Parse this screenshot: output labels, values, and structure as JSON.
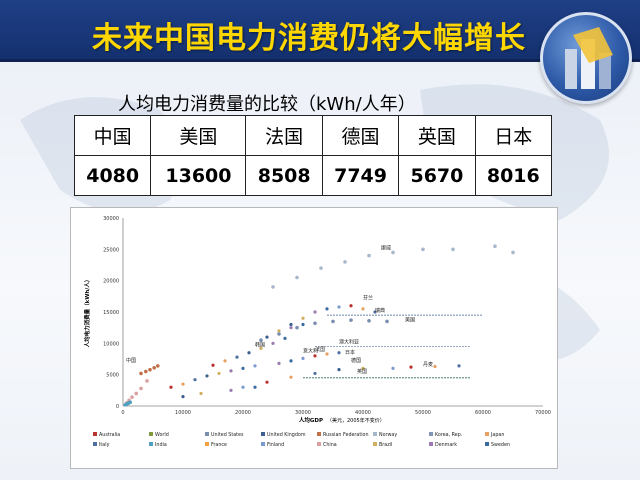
{
  "title": "未来中国电力消费仍将大幅增长",
  "subtitle": "人均电力消费量的比较（kWh/人年）",
  "table": {
    "headers": [
      "中国",
      "美国",
      "法国",
      "德国",
      "英国",
      "日本"
    ],
    "values": [
      "4080",
      "13600",
      "8508",
      "7749",
      "5670",
      "8016"
    ]
  },
  "chart_data": {
    "type": "scatter",
    "xlabel": "人均GDP",
    "xlabel_unit": "（美元，2005年不变价）",
    "ylabel": "人均电力消费量（kWh/人）",
    "xlim": [
      0,
      70000
    ],
    "ylim": [
      0,
      30000
    ],
    "x_ticks": [
      "0",
      "10000",
      "20000",
      "30000",
      "40000",
      "50000",
      "60000",
      "70000"
    ],
    "y_ticks": [
      "0",
      "5000",
      "10000",
      "15000",
      "20000",
      "25000",
      "30000"
    ],
    "annotations": [
      {
        "text": "中国",
        "x": 500,
        "y": 7000
      },
      {
        "text": "挪威",
        "x": 43000,
        "y": 25000
      },
      {
        "text": "芬兰",
        "x": 40000,
        "y": 17000
      },
      {
        "text": "瑞典",
        "x": 42000,
        "y": 15000
      },
      {
        "text": "美国",
        "x": 47000,
        "y": 13500
      },
      {
        "text": "韩国",
        "x": 22000,
        "y": 9500
      },
      {
        "text": "澳大利亚",
        "x": 36000,
        "y": 10000
      },
      {
        "text": "意大利",
        "x": 30000,
        "y": 8500
      },
      {
        "text": "法国",
        "x": 32000,
        "y": 8800
      },
      {
        "text": "日本",
        "x": 37000,
        "y": 8300
      },
      {
        "text": "德国",
        "x": 38000,
        "y": 7000
      },
      {
        "text": "英国",
        "x": 39000,
        "y": 5300
      },
      {
        "text": "丹麦",
        "x": 50000,
        "y": 6400
      }
    ],
    "legend": [
      "Australia",
      "World",
      "United States",
      "United Kingdom",
      "Russian Federation",
      "Norway",
      "Korea, Rep.",
      "Japan",
      "Italy",
      "India",
      "France",
      "Finland",
      "China",
      "Brazil",
      "Denmark",
      "Sweden"
    ],
    "legend_colors": [
      "#b8322e",
      "#7f9a3a",
      "#7a8fb0",
      "#3b5f8f",
      "#c0714a",
      "#a8b8cc",
      "#8095b8",
      "#e8a060",
      "#4f6fa0",
      "#4fa0c0",
      "#f0a040",
      "#7a9ad0",
      "#d8a0a0",
      "#d0b060",
      "#9a7ab0",
      "#3a6aa0"
    ],
    "legend_position": "bottom",
    "series": [
      {
        "name": "United States",
        "x": [
          23000,
          26000,
          29000,
          32000,
          35000,
          38000,
          41000,
          44000
        ],
        "y": [
          10500,
          11500,
          12500,
          13200,
          13500,
          13700,
          13600,
          13500
        ]
      },
      {
        "name": "Norway",
        "x": [
          25000,
          29000,
          33000,
          37000,
          41000,
          45000,
          50000,
          55000,
          62000,
          65000
        ],
        "y": [
          19000,
          20500,
          22000,
          23000,
          24000,
          24500,
          25000,
          25000,
          25500,
          24500
        ]
      },
      {
        "name": "China",
        "x": [
          600,
          1000,
          1500,
          2200,
          3000,
          4000
        ],
        "y": [
          500,
          900,
          1400,
          2000,
          2800,
          4000
        ]
      },
      {
        "name": "India",
        "x": [
          400,
          600,
          800,
          1000,
          1200
        ],
        "y": [
          200,
          300,
          400,
          500,
          600
        ]
      },
      {
        "name": "Russian Federation",
        "x": [
          3000,
          3800,
          4500,
          5200,
          5800
        ],
        "y": [
          5200,
          5500,
          5800,
          6100,
          6400
        ]
      }
    ]
  }
}
